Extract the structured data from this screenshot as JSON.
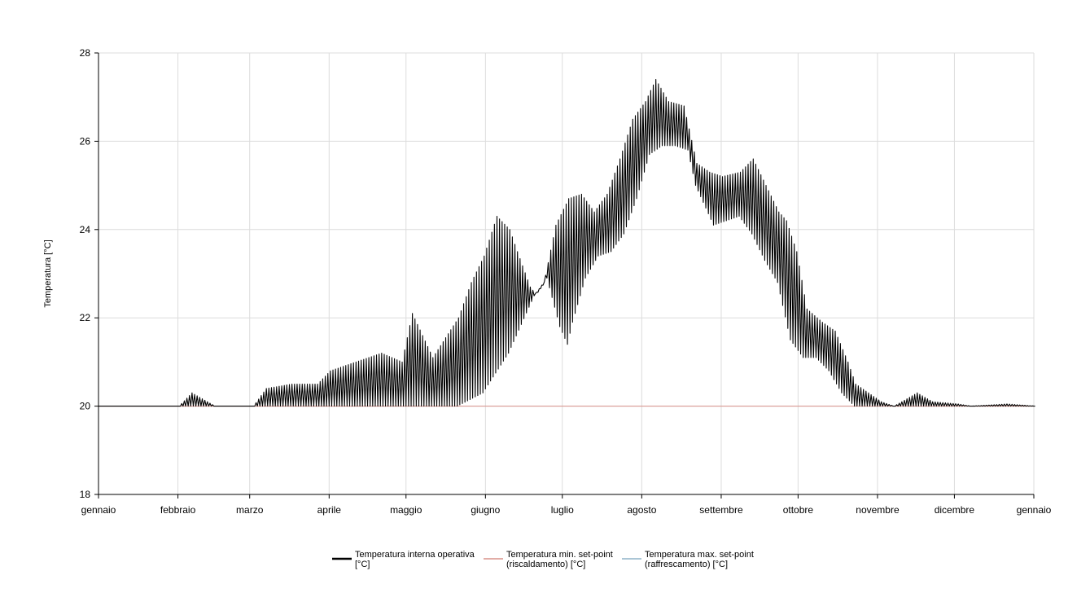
{
  "chart_data": {
    "type": "line",
    "title": "",
    "xlabel": "",
    "ylabel": "Temperatura [°C]",
    "ylim": [
      18,
      28
    ],
    "y_ticks": [
      18,
      20,
      22,
      24,
      26,
      28
    ],
    "x_ticks": [
      "gennaio",
      "febbraio",
      "marzo",
      "aprile",
      "maggio",
      "giugno",
      "luglio",
      "agosto",
      "settembre",
      "ottobre",
      "novembre",
      "dicembre",
      "gennaio"
    ],
    "x_unit": "day of year (0 = 1 gennaio, 365 = 1 gennaio successivo)",
    "xlim": [
      0,
      365
    ],
    "grid": true,
    "legend_position": "bottom-center",
    "series": [
      {
        "name": "Temperatura interna operativa [°C]",
        "color": "#000000",
        "style": "daily oscillation (approx. daily minimum and maximum values)",
        "daily_min": [
          [
            0,
            20.0
          ],
          [
            100,
            20.0
          ],
          [
            140,
            20.0
          ],
          [
            150,
            20.3
          ],
          [
            160,
            21.2
          ],
          [
            170,
            22.5
          ],
          [
            175,
            22.9
          ],
          [
            180,
            21.8
          ],
          [
            183,
            21.4
          ],
          [
            185,
            21.9
          ],
          [
            190,
            22.9
          ],
          [
            195,
            23.4
          ],
          [
            200,
            23.5
          ],
          [
            205,
            23.9
          ],
          [
            210,
            24.7
          ],
          [
            215,
            25.7
          ],
          [
            220,
            25.9
          ],
          [
            225,
            25.9
          ],
          [
            230,
            25.8
          ],
          [
            233,
            25.0
          ],
          [
            240,
            24.1
          ],
          [
            245,
            24.2
          ],
          [
            250,
            24.3
          ],
          [
            255,
            23.9
          ],
          [
            260,
            23.3
          ],
          [
            265,
            22.8
          ],
          [
            270,
            21.5
          ],
          [
            275,
            21.1
          ],
          [
            280,
            21.1
          ],
          [
            285,
            20.8
          ],
          [
            290,
            20.3
          ],
          [
            295,
            20.0
          ],
          [
            365,
            20.0
          ]
        ],
        "daily_max": [
          [
            0,
            20.0
          ],
          [
            31,
            20.0
          ],
          [
            36,
            20.3
          ],
          [
            45,
            20.0
          ],
          [
            60,
            20.0
          ],
          [
            65,
            20.4
          ],
          [
            75,
            20.5
          ],
          [
            85,
            20.5
          ],
          [
            90,
            20.8
          ],
          [
            100,
            21.0
          ],
          [
            110,
            21.2
          ],
          [
            118,
            21.0
          ],
          [
            122,
            22.1
          ],
          [
            130,
            21.1
          ],
          [
            140,
            22.0
          ],
          [
            145,
            22.8
          ],
          [
            150,
            23.4
          ],
          [
            155,
            24.3
          ],
          [
            160,
            24.0
          ],
          [
            163,
            23.5
          ],
          [
            168,
            22.7
          ],
          [
            172,
            22.4
          ],
          [
            178,
            24.1
          ],
          [
            183,
            24.7
          ],
          [
            188,
            24.8
          ],
          [
            193,
            24.4
          ],
          [
            198,
            24.8
          ],
          [
            203,
            25.6
          ],
          [
            208,
            26.5
          ],
          [
            213,
            26.9
          ],
          [
            217,
            27.4
          ],
          [
            222,
            26.9
          ],
          [
            228,
            26.8
          ],
          [
            233,
            25.5
          ],
          [
            238,
            25.3
          ],
          [
            243,
            25.2
          ],
          [
            250,
            25.3
          ],
          [
            255,
            25.6
          ],
          [
            260,
            25.0
          ],
          [
            265,
            24.4
          ],
          [
            268,
            24.2
          ],
          [
            272,
            23.5
          ],
          [
            276,
            22.2
          ],
          [
            282,
            21.9
          ],
          [
            287,
            21.7
          ],
          [
            292,
            21.0
          ],
          [
            295,
            20.5
          ],
          [
            300,
            20.3
          ],
          [
            305,
            20.1
          ],
          [
            310,
            20.0
          ],
          [
            319,
            20.3
          ],
          [
            325,
            20.1
          ],
          [
            335,
            20.05
          ],
          [
            340,
            20.0
          ],
          [
            354,
            20.05
          ],
          [
            365,
            20.0
          ]
        ]
      },
      {
        "name": "Temperatura min. set-point (riscaldamento) [°C]",
        "color": "#d9928a",
        "points": [
          [
            0,
            20
          ],
          [
            365,
            20
          ]
        ]
      },
      {
        "name": "Temperatura max. set-point (raffrescamento) [°C]",
        "color": "#8fb3c8",
        "points": []
      }
    ]
  },
  "legend": [
    {
      "line1": "Temperatura interna operativa",
      "line2": "[°C]",
      "color": "#000000"
    },
    {
      "line1": "Temperatura min. set-point",
      "line2": "(riscaldamento) [°C]",
      "color": "#d9928a"
    },
    {
      "line1": "Temperatura max. set-point",
      "line2": "(raffrescamento) [°C]",
      "color": "#8fb3c8"
    }
  ]
}
